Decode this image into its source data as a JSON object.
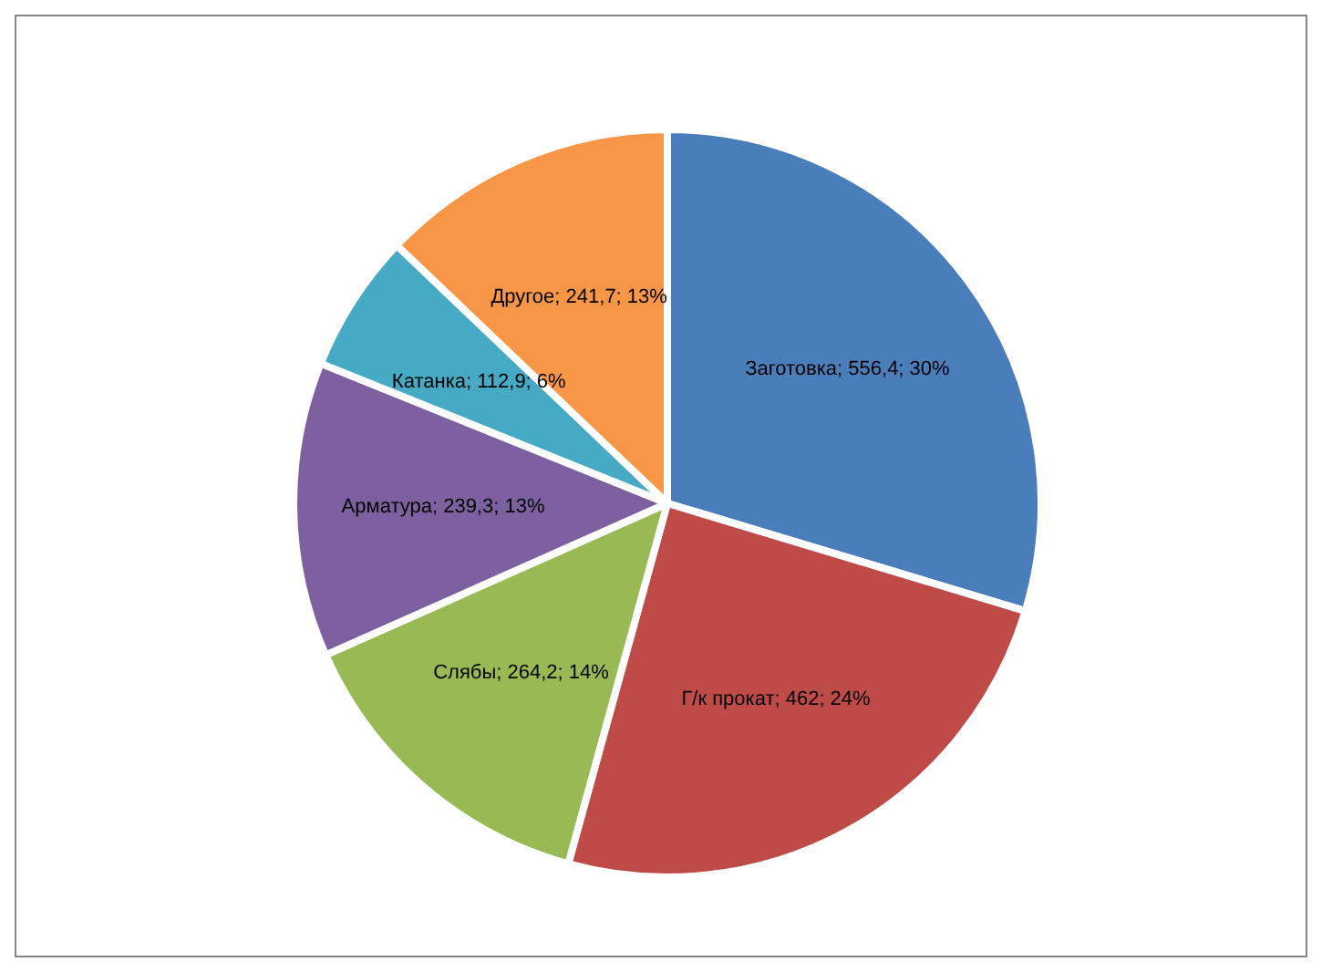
{
  "chart_data": {
    "type": "pie",
    "categories": [
      "Заготовка",
      "Г/к прокат",
      "Слябы",
      "Арматура",
      "Катанка",
      "Другое"
    ],
    "values": [
      556.4,
      462,
      264.2,
      239.3,
      112.9,
      241.7
    ],
    "colors": [
      "#4a7ebb",
      "#be4b48",
      "#98b954",
      "#7d60a0",
      "#46aac5",
      "#f79646"
    ],
    "value_labels": [
      "; 556,4; 30%",
      "; 462; 24%",
      "; 264,2; 14%",
      "; 239,3; 13%",
      "; 112,9; 6%",
      "; 241,7; 13%"
    ]
  }
}
